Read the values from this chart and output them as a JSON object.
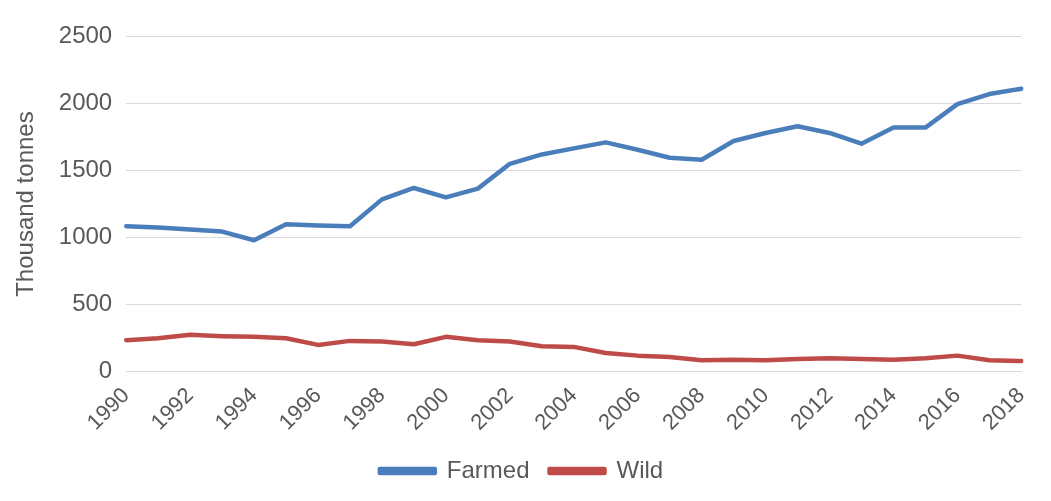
{
  "chart_data": {
    "type": "line",
    "ylabel": "Thousand tonnes",
    "categories": [
      "1990",
      null,
      "1992",
      null,
      "1994",
      null,
      "1996",
      null,
      "1998",
      null,
      "2000",
      null,
      "2002",
      null,
      "2004",
      null,
      "2006",
      null,
      "2008",
      null,
      "2010",
      null,
      "2012",
      null,
      "2014",
      null,
      "2016",
      null,
      "2018"
    ],
    "series": [
      {
        "name": "Farmed",
        "color": "#4a7ebb",
        "values": [
          1085,
          1075,
          1060,
          1045,
          980,
          1100,
          1090,
          1085,
          1285,
          1370,
          1300,
          1365,
          1550,
          1620,
          1665,
          1710,
          1655,
          1595,
          1580,
          1720,
          1780,
          1830,
          1780,
          1700,
          1820,
          1820,
          1995,
          2070,
          2110
        ]
      },
      {
        "name": "Wild",
        "color": "#be4b48",
        "values": [
          235,
          250,
          275,
          265,
          260,
          250,
          200,
          230,
          225,
          205,
          260,
          235,
          225,
          190,
          185,
          140,
          120,
          110,
          85,
          90,
          85,
          95,
          100,
          95,
          90,
          100,
          120,
          85,
          80
        ]
      }
    ],
    "ylim": [
      0,
      2500
    ],
    "yticks": [
      0,
      500,
      1000,
      1500,
      2000,
      2500
    ],
    "grid": "y",
    "legend": "bottom",
    "marker": "none",
    "line_style": "solid"
  }
}
